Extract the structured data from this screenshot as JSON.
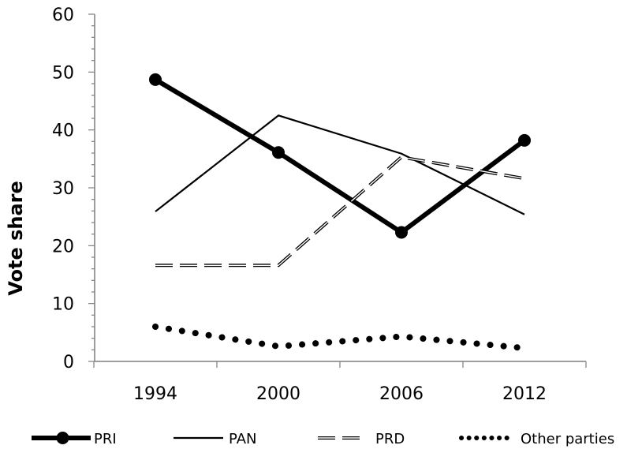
{
  "chart_data": {
    "type": "line",
    "title": "",
    "xlabel": "",
    "ylabel": "Vote share",
    "categories": [
      "1994",
      "2000",
      "2006",
      "2012"
    ],
    "ylim": [
      0,
      60
    ],
    "yticks": [
      0,
      10,
      20,
      30,
      40,
      50,
      60
    ],
    "grid": false,
    "legend_position": "bottom",
    "series": [
      {
        "name": "PRI",
        "values": [
          48.7,
          36.1,
          22.3,
          38.2
        ],
        "style": "thick-solid-markers",
        "color": "#000000"
      },
      {
        "name": "PAN",
        "values": [
          25.9,
          42.5,
          35.9,
          25.4
        ],
        "style": "solid",
        "color": "#000000"
      },
      {
        "name": "PRD",
        "values": [
          16.6,
          16.6,
          35.3,
          31.6
        ],
        "style": "dashed",
        "color": "#000000"
      },
      {
        "name": "Other parties",
        "values": [
          6.0,
          2.6,
          4.3,
          2.3
        ],
        "style": "dotted",
        "color": "#000000"
      }
    ]
  }
}
